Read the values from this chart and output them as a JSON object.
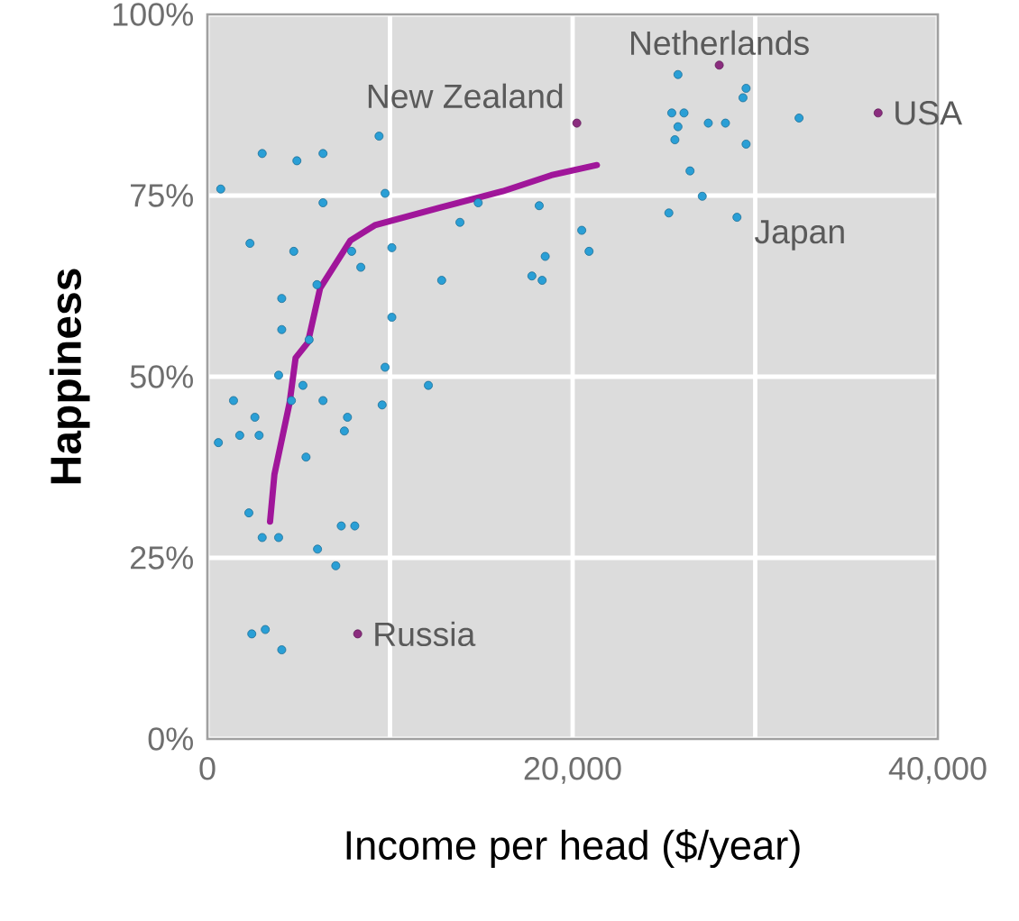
{
  "chart_data": {
    "type": "scatter",
    "xlabel": "Income per head ($/year)",
    "ylabel": "Happiness",
    "xlim": [
      0,
      40000
    ],
    "ylim": [
      0,
      100
    ],
    "xticks": [
      0,
      {
        "value": 10000,
        "label": null
      },
      {
        "value": 20000,
        "label": "20,000"
      },
      {
        "value": 30000,
        "label": null
      },
      {
        "value": 40000,
        "label": "40,000"
      }
    ],
    "yticks": [
      {
        "value": 0,
        "label": "0%"
      },
      {
        "value": 25,
        "label": "25%"
      },
      {
        "value": 50,
        "label": "50%"
      },
      {
        "value": 75,
        "label": "75%"
      },
      {
        "value": 100,
        "label": "100%"
      }
    ],
    "grid": true,
    "series": [
      {
        "marker": "circle",
        "color": "#2a9fd6",
        "x": [
          730,
          3000,
          4900,
          6330,
          9400,
          6330,
          9730,
          2330,
          4730,
          7900,
          8400,
          10100,
          13830,
          14830,
          12830,
          18170,
          17770,
          18330,
          18500,
          20500,
          20900,
          6000,
          4070,
          4070,
          5570,
          10100,
          9730,
          3900,
          5230,
          12100,
          1430,
          4600,
          6330,
          9570,
          2600,
          7670,
          600,
          1770,
          2830,
          7500,
          5400,
          2270,
          3000,
          3900,
          7330,
          8070,
          6030,
          7030,
          2430,
          3170,
          4070,
          25770,
          29500,
          29330,
          25430,
          26100,
          25770,
          25600,
          27430,
          28370,
          29500,
          32400,
          26430,
          27100,
          25270,
          29000
        ],
        "values": [
          75.9,
          80.8,
          79.8,
          80.8,
          83.2,
          74.0,
          75.3,
          68.4,
          67.3,
          67.3,
          65.1,
          67.8,
          71.3,
          74.0,
          63.3,
          73.6,
          63.9,
          63.3,
          66.6,
          70.2,
          67.3,
          62.7,
          60.8,
          56.5,
          55.1,
          58.2,
          51.3,
          50.2,
          48.8,
          48.8,
          46.7,
          46.7,
          46.7,
          46.1,
          44.4,
          44.4,
          40.9,
          41.9,
          41.9,
          42.5,
          38.9,
          31.2,
          27.8,
          27.8,
          29.4,
          29.4,
          26.2,
          23.9,
          14.5,
          15.1,
          12.3,
          91.7,
          89.8,
          88.5,
          86.4,
          86.4,
          84.5,
          82.7,
          85.0,
          85.0,
          82.1,
          85.7,
          78.4,
          74.9,
          72.6,
          72.0
        ]
      },
      {
        "marker": "circle",
        "color": "#8b2d7f",
        "x": [
          20230,
          28030,
          36730,
          8230
        ],
        "values": [
          85.0,
          93.0,
          86.4,
          14.5
        ]
      },
      {
        "type": "line",
        "marker": "none",
        "color": "#a0169a",
        "x": [
          3430,
          3670,
          4500,
          4830,
          5500,
          6170,
          7830,
          9170,
          12830,
          16170,
          18830,
          21330
        ],
        "values": [
          30.0,
          36.5,
          46.4,
          52.6,
          54.7,
          62.2,
          68.8,
          70.9,
          73.4,
          75.6,
          77.8,
          79.2
        ]
      }
    ],
    "annotations": [
      {
        "text": "New Zealand",
        "x": 20230,
        "y": 85.0
      },
      {
        "text": "Netherlands",
        "x": 28030,
        "y": 93.0
      },
      {
        "text": "USA",
        "x": 36730,
        "y": 86.4
      },
      {
        "text": "Japan",
        "x": 29000,
        "y": 72.0
      },
      {
        "text": "Russia",
        "x": 8230,
        "y": 14.5
      }
    ]
  }
}
